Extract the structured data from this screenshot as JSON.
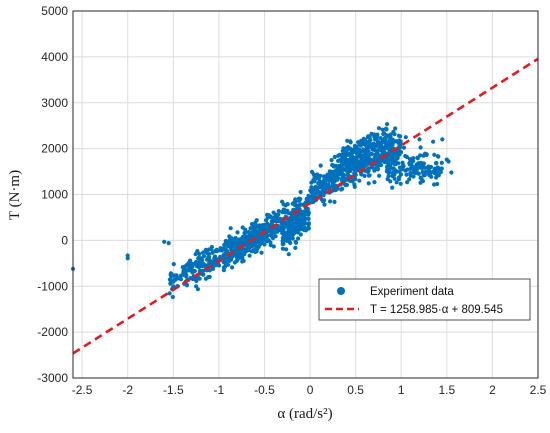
{
  "chart_data": {
    "type": "scatter",
    "xlabel": "α (rad/s²)",
    "ylabel": "T (N·m)",
    "xlim": [
      -2.6,
      2.5
    ],
    "ylim": [
      -3000,
      5000
    ],
    "xticks": [
      -2.5,
      -2,
      -1.5,
      -1,
      -0.5,
      0,
      0.5,
      1,
      1.5,
      2,
      2.5
    ],
    "xtick_labels": [
      "-2.5",
      "-2",
      "-1.5",
      "-1",
      "-0.5",
      "0",
      "0.5",
      "1",
      "1.5",
      "2",
      "2.5"
    ],
    "yticks": [
      -3000,
      -2000,
      -1000,
      0,
      1000,
      2000,
      3000,
      4000,
      5000
    ],
    "ytick_labels": [
      "-3000",
      "-2000",
      "-1000",
      "0",
      "1000",
      "2000",
      "3000",
      "4000",
      "5000"
    ],
    "grid": true,
    "legend_position": "bottom-right",
    "colors": {
      "scatter": "#0072BD",
      "fit": "#E41A1C"
    },
    "series": [
      {
        "name": "Experiment data",
        "mode": "markers",
        "clusters": [
          {
            "x": [
              -1.55,
              -0.1
            ],
            "slope": 1150,
            "intercept": 810,
            "spread": 230,
            "n": 420
          },
          {
            "x": [
              -0.95,
              -0.35
            ],
            "slope": 1100,
            "intercept": 700,
            "spread": 200,
            "n": 220
          },
          {
            "x": [
              -0.3,
              0.0
            ],
            "slope": 2000,
            "intercept": 650,
            "spread": 250,
            "n": 160
          },
          {
            "x": [
              0.0,
              1.0
            ],
            "slope": 950,
            "intercept": 1100,
            "spread": 260,
            "n": 450
          },
          {
            "x": [
              0.3,
              0.85
            ],
            "slope": 1000,
            "intercept": 1450,
            "spread": 180,
            "n": 140
          },
          {
            "x": [
              0.85,
              1.45
            ],
            "slope": 100,
            "intercept": 1450,
            "spread": 220,
            "n": 130
          }
        ],
        "points": [
          [
            -2.6,
            -620
          ],
          [
            -2.0,
            -330
          ],
          [
            -2.0,
            -390
          ],
          [
            -1.6,
            -30
          ],
          [
            -1.55,
            -60
          ],
          [
            -1.45,
            -1000
          ],
          [
            -1.5,
            -900
          ],
          [
            -1.35,
            -980
          ],
          [
            -1.25,
            -1000
          ],
          [
            1.45,
            2200
          ],
          [
            1.5,
            1760
          ],
          [
            1.52,
            1720
          ],
          [
            1.55,
            1480
          ],
          [
            1.05,
            2250
          ],
          [
            1.2,
            2200
          ],
          [
            1.35,
            2150
          ]
        ]
      },
      {
        "name": "T = 1258.985·α + 809.545",
        "mode": "line",
        "style": "dashed",
        "slope": 1258.985,
        "intercept": 809.545,
        "x": [
          -2.6,
          2.5
        ]
      }
    ]
  }
}
